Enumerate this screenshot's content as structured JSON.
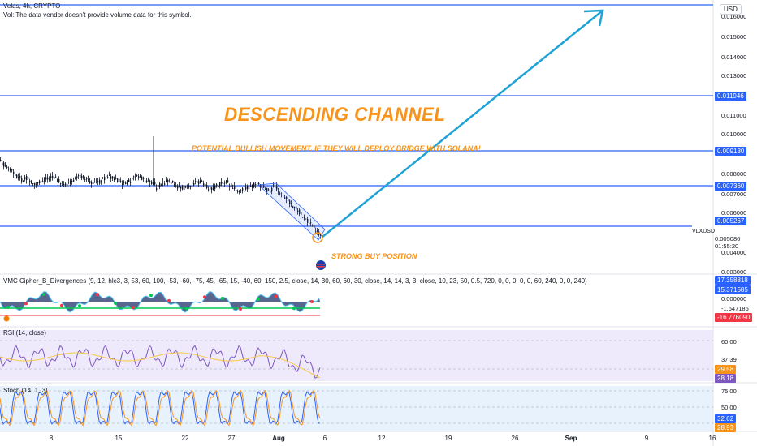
{
  "header": {
    "title": "Velas, 4h, CRYPTO",
    "volume_note": "Vol: The data vendor doesn't provide volume data for this symbol."
  },
  "currency_label": "USD",
  "symbol_label": "VLXUSD",
  "annotations": {
    "title": "DESCENDING CHANNEL",
    "subtitle": "POTENTIAL BULLISH MOVEMENT. IF THEY WILL DEPLOY BRIDGE WITH SOLANA!",
    "buy_note": "STRONG BUY POSITION"
  },
  "price_axis": {
    "ticks": [
      "0.016000",
      "0.015000",
      "0.014000",
      "0.013000",
      "0.011000",
      "0.010000",
      "0.008000",
      "0.007000",
      "0.006000",
      "0.004000",
      "0.003000"
    ],
    "highlighted": [
      {
        "label": "0.011946",
        "color": "#2962ff"
      },
      {
        "label": "0.009130",
        "color": "#2962ff"
      },
      {
        "label": "0.007360",
        "color": "#2962ff"
      },
      {
        "label": "0.005267",
        "color": "#2962ff"
      }
    ],
    "last_price": "0.005086",
    "countdown": "01:55:20"
  },
  "cipher_pane": {
    "title": "VMC Cipher_B_Divergences (9, 12, hlc3, 3, 53, 60, 100, -53, -60, -75, 45, -65, 15, -40, 60, 150, 2.5, close, 14, 30, 60, 60, 30, close, 14, 14, 3, 3, close, 10, 23, 50, 0.5, 720, 0, 0, 0, 0, 0, 60, 240, 0, 0, 240)",
    "values": [
      {
        "label": "17.358818",
        "color": "#2962ff"
      },
      {
        "label": "15.371585",
        "color": "#2962ff"
      },
      {
        "label": "0.000000",
        "color": ""
      },
      {
        "label": "-1.647186",
        "color": ""
      },
      {
        "label": "-16.776090",
        "color": "#f23645"
      }
    ]
  },
  "rsi_pane": {
    "title": "RSI (14, close)",
    "ticks": [
      "60.00",
      "37.39"
    ],
    "values": [
      {
        "label": "29.58",
        "color": "#f7931a"
      },
      {
        "label": "28.18",
        "color": "#7e57c2"
      }
    ]
  },
  "stoch_pane": {
    "title": "Stoch (14, 1, 3)",
    "ticks": [
      "75.00",
      "50.00"
    ],
    "values": [
      {
        "label": "32.62",
        "color": "#2962ff"
      },
      {
        "label": "28.93",
        "color": "#f7931a"
      }
    ]
  },
  "time_axis": [
    "8",
    "15",
    "22",
    "27",
    "Aug",
    "6",
    "12",
    "19",
    "26",
    "Sep",
    "9",
    "16"
  ],
  "colors": {
    "accent_blue": "#2962ff",
    "arrow": "#1fa3d6",
    "annotation_orange": "#f7931a",
    "candle": "#131722"
  }
}
